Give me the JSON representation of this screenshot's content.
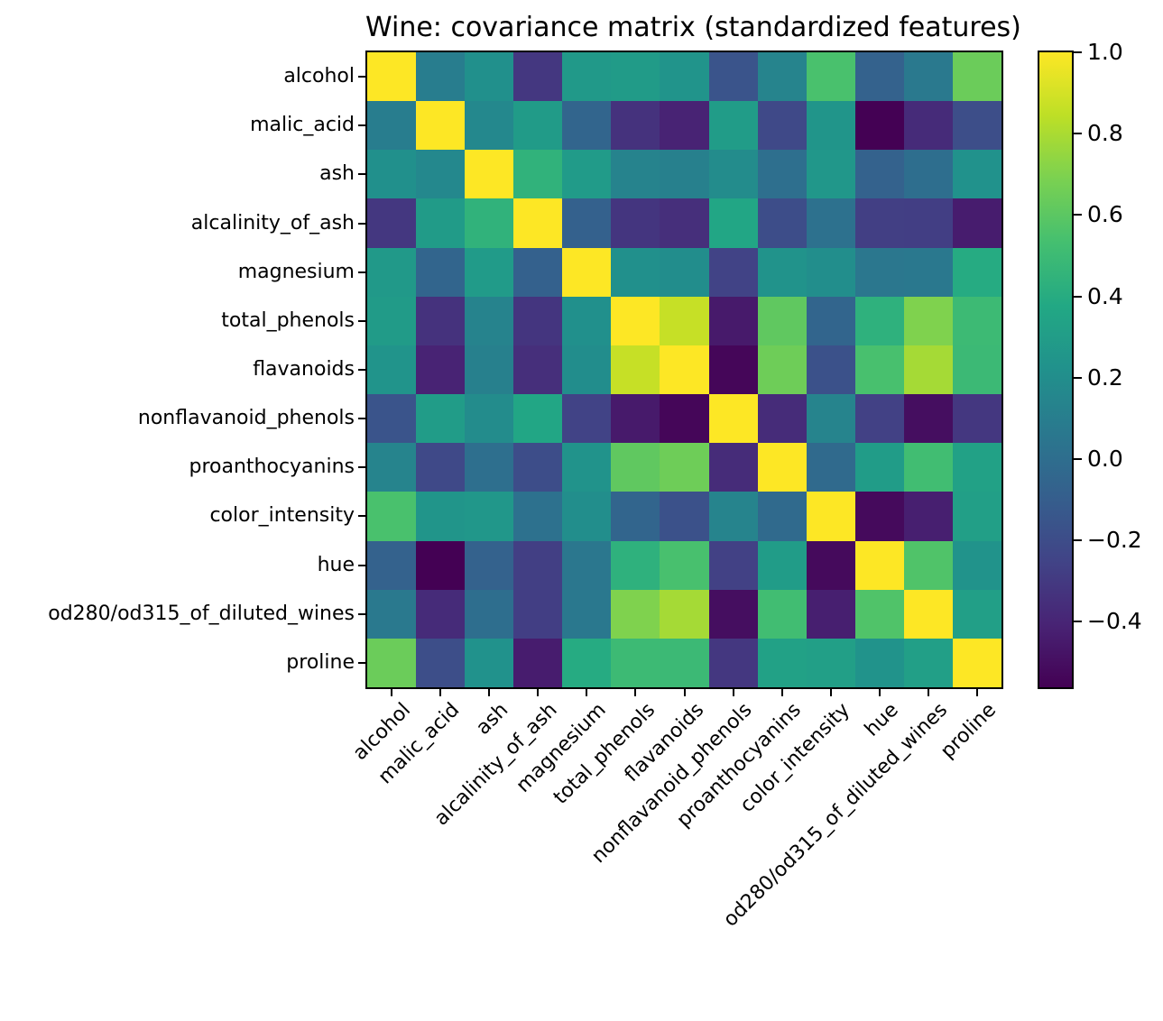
{
  "title": "Wine: covariance matrix (standardized features)",
  "chart_data": {
    "type": "heatmap",
    "colormap": "viridis",
    "vmin": -0.561,
    "vmax": 1.0,
    "features": [
      "alcohol",
      "malic_acid",
      "ash",
      "alcalinity_of_ash",
      "magnesium",
      "total_phenols",
      "flavanoids",
      "nonflavanoid_phenols",
      "proanthocyanins",
      "color_intensity",
      "hue",
      "od280/od315_of_diluted_wines",
      "proline"
    ],
    "matrix": [
      [
        1.0,
        0.094,
        0.212,
        -0.31,
        0.271,
        0.289,
        0.237,
        -0.156,
        0.137,
        0.546,
        -0.072,
        0.072,
        0.644
      ],
      [
        0.094,
        1.0,
        0.164,
        0.289,
        -0.055,
        -0.335,
        -0.411,
        0.293,
        -0.221,
        0.249,
        -0.561,
        -0.369,
        -0.192
      ],
      [
        0.212,
        0.164,
        1.0,
        0.443,
        0.287,
        0.129,
        0.115,
        0.186,
        0.01,
        0.259,
        -0.075,
        0.004,
        0.224
      ],
      [
        -0.31,
        0.289,
        0.443,
        1.0,
        -0.083,
        -0.321,
        -0.351,
        0.362,
        -0.197,
        0.019,
        -0.274,
        -0.277,
        -0.44
      ],
      [
        0.271,
        -0.055,
        0.287,
        -0.083,
        1.0,
        0.214,
        0.196,
        -0.256,
        0.236,
        0.2,
        0.055,
        0.066,
        0.393
      ],
      [
        0.289,
        -0.335,
        0.129,
        -0.321,
        0.214,
        1.0,
        0.865,
        -0.45,
        0.612,
        -0.055,
        0.434,
        0.7,
        0.498
      ],
      [
        0.237,
        -0.411,
        0.115,
        -0.351,
        0.196,
        0.865,
        1.0,
        -0.538,
        0.653,
        -0.172,
        0.543,
        0.787,
        0.494
      ],
      [
        -0.156,
        0.293,
        0.186,
        0.362,
        -0.256,
        -0.45,
        -0.538,
        1.0,
        -0.366,
        0.139,
        -0.263,
        -0.503,
        -0.311
      ],
      [
        0.137,
        -0.221,
        0.01,
        -0.197,
        0.236,
        0.612,
        0.653,
        -0.366,
        1.0,
        -0.025,
        0.296,
        0.519,
        0.33
      ],
      [
        0.546,
        0.249,
        0.259,
        0.019,
        0.2,
        -0.055,
        -0.172,
        0.139,
        -0.025,
        1.0,
        -0.522,
        -0.429,
        0.316
      ],
      [
        -0.072,
        -0.561,
        -0.075,
        -0.274,
        0.055,
        0.434,
        0.543,
        -0.263,
        0.296,
        -0.522,
        1.0,
        0.565,
        0.236
      ],
      [
        0.072,
        -0.369,
        0.004,
        -0.277,
        0.066,
        0.7,
        0.787,
        -0.503,
        0.519,
        -0.429,
        0.565,
        1.0,
        0.313
      ],
      [
        0.644,
        -0.192,
        0.224,
        -0.44,
        0.393,
        0.498,
        0.494,
        -0.311,
        0.33,
        0.316,
        0.236,
        0.313,
        1.0
      ]
    ],
    "legend_position": "right",
    "colorbar": {
      "ticks": [
        {
          "label": "1.0",
          "value": 1.0
        },
        {
          "label": "0.8",
          "value": 0.8
        },
        {
          "label": "0.6",
          "value": 0.6
        },
        {
          "label": "0.4",
          "value": 0.4
        },
        {
          "label": "0.2",
          "value": 0.2
        },
        {
          "label": "0.0",
          "value": 0.0
        },
        {
          "label": "−0.2",
          "value": -0.2
        },
        {
          "label": "−0.4",
          "value": -0.4
        }
      ]
    }
  }
}
